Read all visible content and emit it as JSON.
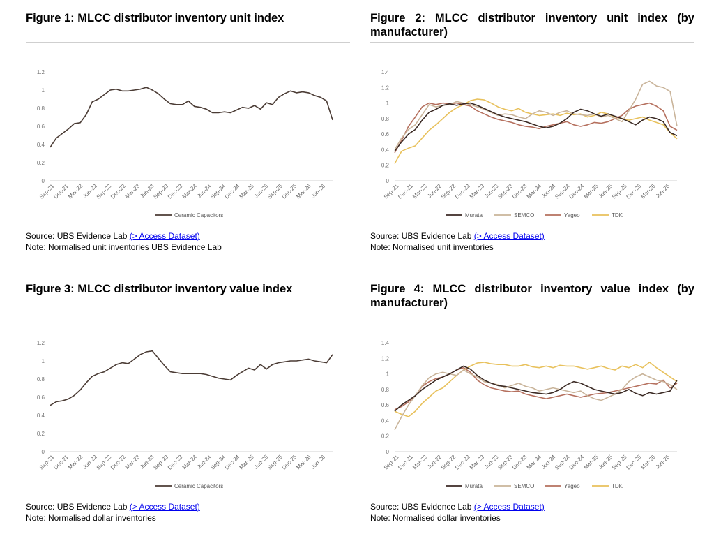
{
  "xlabels": [
    "Sep-21",
    "Dec-21",
    "Mar-22",
    "Jun-22",
    "Sep-22",
    "Dec-22",
    "Mar-23",
    "Jun-23",
    "Sep-23",
    "Dec-23",
    "Mar-24",
    "Jun-24",
    "Sep-24",
    "Dec-24",
    "Mar-25",
    "Jun-25",
    "Sep-25",
    "Dec-25",
    "Mar-26",
    "Jun-26"
  ],
  "colors": {
    "Murata": "#3b2a24",
    "SEMCO": "#c9b49a",
    "Yageo": "#b5705e",
    "TDK": "#e8c15c",
    "Ceramic Capacitors": "#4b3c35"
  },
  "figures": [
    {
      "title": "Figure 1: MLCC distributor inventory unit index",
      "source_prefix": "Source: UBS Evidence Lab ",
      "source_link": "(> Access Dataset)",
      "note": "Note: Normalised unit inventories UBS Evidence Lab"
    },
    {
      "title": "Figure 2: MLCC distributor inventory unit index (by manufacturer)",
      "source_prefix": "Source: UBS Evidence Lab ",
      "source_link": "(> Access Dataset)",
      "note": "Note: Normalised unit inventories"
    },
    {
      "title": "Figure 3: MLCC distributor inventory value index",
      "source_prefix": "Source: UBS Evidence Lab ",
      "source_link": "(> Access Dataset)",
      "note": "Note: Normalised dollar inventories"
    },
    {
      "title": "Figure 4: MLCC distributor inventory value index (by manufacturer)",
      "source_prefix": "Source: UBS Evidence Lab ",
      "source_link": "(> Access Dataset)",
      "note": "Note: Normalised dollar inventories"
    }
  ],
  "chart_data": [
    {
      "type": "line",
      "title": "Figure 1: MLCC distributor inventory unit index",
      "ylim": [
        0,
        1.2
      ],
      "yticks": [
        "0",
        "0.2",
        "0.4",
        "0.6",
        "0.8",
        "1",
        "1.2"
      ],
      "legend": "bottom",
      "series": [
        {
          "name": "Ceramic Capacitors",
          "values": [
            0.37,
            0.47,
            0.52,
            0.57,
            0.63,
            0.64,
            0.73,
            0.87,
            0.9,
            0.95,
            1.0,
            1.01,
            0.99,
            0.99,
            1.0,
            1.01,
            1.03,
            1.0,
            0.96,
            0.9,
            0.85,
            0.84,
            0.84,
            0.88,
            0.82,
            0.81,
            0.79,
            0.75,
            0.75,
            0.76,
            0.75,
            0.78,
            0.81,
            0.8,
            0.83,
            0.79,
            0.86,
            0.84,
            0.92,
            0.96,
            0.99,
            0.97,
            0.98,
            0.97,
            0.94,
            0.92,
            0.88,
            0.67
          ]
        }
      ]
    },
    {
      "type": "line",
      "title": "Figure 2: MLCC distributor inventory unit index (by manufacturer)",
      "ylim": [
        0,
        1.4
      ],
      "yticks": [
        "0",
        "0.2",
        "0.4",
        "0.6",
        "0.8",
        "1",
        "1.2",
        "1.4"
      ],
      "legend": "bottom",
      "series": [
        {
          "name": "Murata",
          "values": [
            0.38,
            0.5,
            0.6,
            0.66,
            0.78,
            0.88,
            0.92,
            0.97,
            0.99,
            0.97,
            0.99,
            1.0,
            0.97,
            0.93,
            0.89,
            0.85,
            0.82,
            0.8,
            0.78,
            0.76,
            0.73,
            0.7,
            0.68,
            0.7,
            0.74,
            0.8,
            0.88,
            0.92,
            0.9,
            0.86,
            0.83,
            0.86,
            0.83,
            0.8,
            0.76,
            0.72,
            0.78,
            0.82,
            0.8,
            0.76,
            0.62,
            0.58
          ]
        },
        {
          "name": "SEMCO",
          "values": [
            0.4,
            0.55,
            0.66,
            0.72,
            0.85,
            0.98,
            0.95,
            0.97,
            0.98,
            1.02,
            1.0,
            0.98,
            0.95,
            0.92,
            0.88,
            0.84,
            0.86,
            0.85,
            0.82,
            0.8,
            0.86,
            0.9,
            0.88,
            0.84,
            0.88,
            0.9,
            0.86,
            0.85,
            0.84,
            0.86,
            0.82,
            0.84,
            0.8,
            0.76,
            0.9,
            1.05,
            1.24,
            1.28,
            1.22,
            1.2,
            1.15,
            0.7
          ]
        },
        {
          "name": "Yageo",
          "values": [
            0.36,
            0.52,
            0.7,
            0.82,
            0.95,
            1.0,
            0.98,
            1.0,
            0.99,
            1.0,
            0.98,
            0.96,
            0.9,
            0.86,
            0.82,
            0.79,
            0.77,
            0.75,
            0.72,
            0.7,
            0.69,
            0.67,
            0.7,
            0.72,
            0.74,
            0.76,
            0.72,
            0.7,
            0.72,
            0.75,
            0.74,
            0.76,
            0.8,
            0.84,
            0.92,
            0.96,
            0.98,
            1.0,
            0.96,
            0.9,
            0.7,
            0.65
          ]
        },
        {
          "name": "TDK",
          "values": [
            0.22,
            0.38,
            0.42,
            0.45,
            0.55,
            0.65,
            0.72,
            0.8,
            0.88,
            0.94,
            0.98,
            1.03,
            1.05,
            1.04,
            1.0,
            0.95,
            0.92,
            0.9,
            0.93,
            0.88,
            0.86,
            0.84,
            0.85,
            0.86,
            0.84,
            0.87,
            0.85,
            0.86,
            0.82,
            0.84,
            0.88,
            0.86,
            0.82,
            0.8,
            0.78,
            0.8,
            0.82,
            0.78,
            0.75,
            0.72,
            0.62,
            0.54
          ]
        }
      ]
    },
    {
      "type": "line",
      "title": "Figure 3: MLCC distributor inventory value index",
      "ylim": [
        0,
        1.2
      ],
      "yticks": [
        "0",
        "0.2",
        "0.4",
        "0.6",
        "0.8",
        "1",
        "1.2"
      ],
      "legend": "bottom",
      "series": [
        {
          "name": "Ceramic Capacitors",
          "values": [
            0.51,
            0.55,
            0.56,
            0.58,
            0.62,
            0.68,
            0.76,
            0.83,
            0.86,
            0.88,
            0.92,
            0.96,
            0.98,
            0.97,
            1.02,
            1.07,
            1.1,
            1.11,
            1.03,
            0.95,
            0.88,
            0.87,
            0.86,
            0.86,
            0.86,
            0.86,
            0.85,
            0.83,
            0.81,
            0.8,
            0.79,
            0.84,
            0.88,
            0.92,
            0.9,
            0.96,
            0.91,
            0.96,
            0.98,
            0.99,
            1.0,
            1.0,
            1.01,
            1.02,
            1.0,
            0.99,
            0.98,
            1.07
          ]
        }
      ]
    },
    {
      "type": "line",
      "title": "Figure 4: MLCC distributor inventory value index (by manufacturer)",
      "ylim": [
        0,
        1.4
      ],
      "yticks": [
        "0",
        "0.2",
        "0.4",
        "0.6",
        "0.8",
        "1",
        "1.2",
        "1.4"
      ],
      "legend": "bottom",
      "series": [
        {
          "name": "Murata",
          "values": [
            0.52,
            0.6,
            0.66,
            0.72,
            0.8,
            0.86,
            0.92,
            0.96,
            1.0,
            1.05,
            1.1,
            1.06,
            0.98,
            0.92,
            0.88,
            0.85,
            0.84,
            0.82,
            0.8,
            0.78,
            0.76,
            0.75,
            0.74,
            0.76,
            0.8,
            0.86,
            0.9,
            0.88,
            0.84,
            0.8,
            0.78,
            0.76,
            0.74,
            0.76,
            0.8,
            0.75,
            0.72,
            0.76,
            0.74,
            0.76,
            0.78,
            0.92
          ]
        },
        {
          "name": "SEMCO",
          "values": [
            0.28,
            0.45,
            0.6,
            0.72,
            0.85,
            0.95,
            1.0,
            1.02,
            1.0,
            0.98,
            1.05,
            1.0,
            0.96,
            0.9,
            0.88,
            0.86,
            0.82,
            0.85,
            0.88,
            0.84,
            0.82,
            0.78,
            0.8,
            0.82,
            0.8,
            0.78,
            0.76,
            0.78,
            0.72,
            0.68,
            0.66,
            0.7,
            0.74,
            0.8,
            0.9,
            0.96,
            1.0,
            0.96,
            0.92,
            0.9,
            0.86,
            0.8
          ]
        },
        {
          "name": "Yageo",
          "values": [
            0.54,
            0.58,
            0.64,
            0.72,
            0.84,
            0.9,
            0.94,
            0.96,
            1.0,
            1.05,
            1.08,
            1.02,
            0.92,
            0.86,
            0.82,
            0.8,
            0.78,
            0.77,
            0.78,
            0.74,
            0.72,
            0.7,
            0.68,
            0.7,
            0.72,
            0.74,
            0.72,
            0.7,
            0.72,
            0.74,
            0.75,
            0.76,
            0.78,
            0.8,
            0.82,
            0.84,
            0.86,
            0.88,
            0.87,
            0.92,
            0.82,
            0.88
          ]
        },
        {
          "name": "TDK",
          "values": [
            0.52,
            0.48,
            0.45,
            0.52,
            0.62,
            0.7,
            0.78,
            0.82,
            0.9,
            0.98,
            1.05,
            1.1,
            1.14,
            1.15,
            1.13,
            1.12,
            1.12,
            1.1,
            1.1,
            1.12,
            1.09,
            1.08,
            1.1,
            1.08,
            1.11,
            1.1,
            1.1,
            1.08,
            1.06,
            1.08,
            1.1,
            1.07,
            1.05,
            1.1,
            1.08,
            1.12,
            1.08,
            1.15,
            1.08,
            1.02,
            0.96,
            0.9
          ]
        }
      ]
    }
  ]
}
